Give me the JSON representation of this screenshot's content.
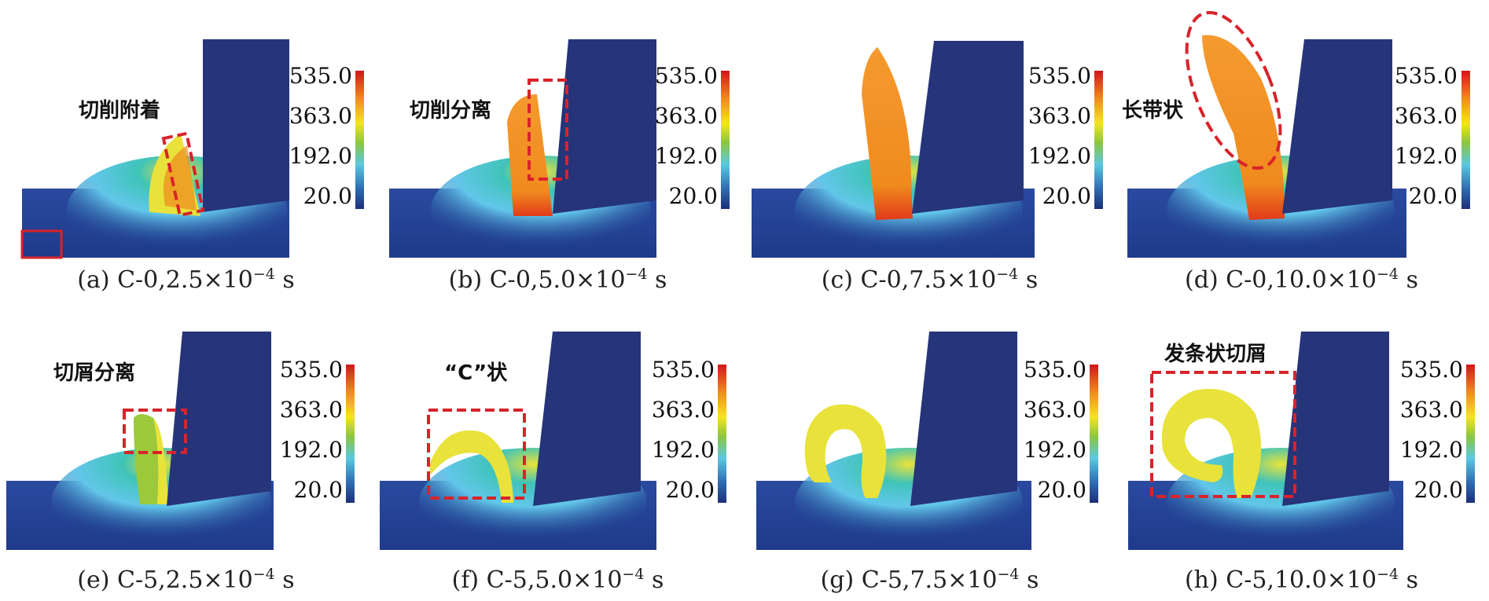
{
  "colorbar": {
    "ticks": [
      "535.0",
      "363.0",
      "192.0",
      "20.0"
    ],
    "colors": [
      "#d2161b",
      "#f08a1e",
      "#f5e51e",
      "#8cc63f",
      "#5ac8e0",
      "#2f6db2",
      "#1d2f7a"
    ]
  },
  "panels": [
    {
      "caption_prefix": "(a) C-0,2.5×10",
      "exponent": "−4",
      "unit": " s",
      "annotation": "切削附着"
    },
    {
      "caption_prefix": "(b) C-0,5.0×10",
      "exponent": "−4",
      "unit": " s",
      "annotation": "切削分离"
    },
    {
      "caption_prefix": "(c) C-0,7.5×10",
      "exponent": "−4",
      "unit": " s",
      "annotation": ""
    },
    {
      "caption_prefix": "(d) C-0,10.0×10",
      "exponent": "−4",
      "unit": " s",
      "annotation": "长带状"
    },
    {
      "caption_prefix": "(e) C-5,2.5×10",
      "exponent": "−4",
      "unit": " s",
      "annotation": "切屑分离"
    },
    {
      "caption_prefix": "(f) C-5,5.0×10",
      "exponent": "−4",
      "unit": " s",
      "annotation": "“C”状"
    },
    {
      "caption_prefix": "(g) C-5,7.5×10",
      "exponent": "−4",
      "unit": " s",
      "annotation": ""
    },
    {
      "caption_prefix": "(h) C-5,10.0×10",
      "exponent": "−4",
      "unit": " s",
      "annotation": "发条状切屑"
    }
  ]
}
